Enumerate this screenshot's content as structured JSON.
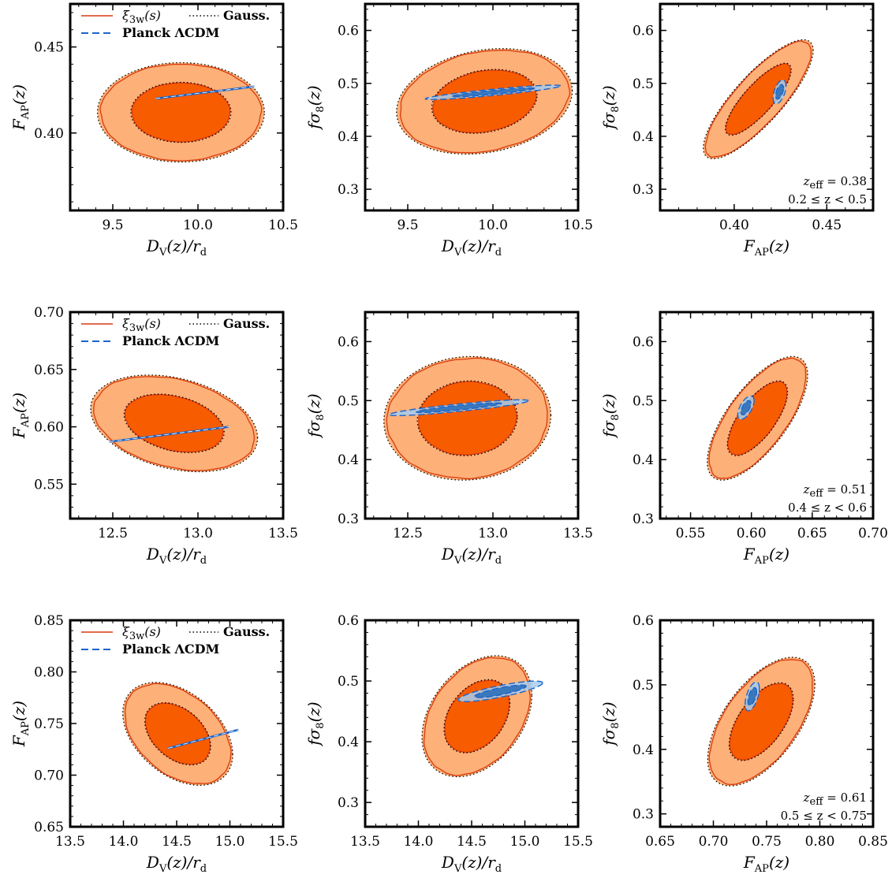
{
  "colors": {
    "orange_1sigma": "#f85c00",
    "orange_2sigma": "#fdb077",
    "orange_line": "#d83a10",
    "blue_1sigma": "#3a78be",
    "blue_2sigma": "#a6cdf0",
    "blue_line": "#1c64c8",
    "overlap": "#b5b8be",
    "gauss_line": "#000000"
  },
  "legend": {
    "xi": "ξ3w(s)",
    "gauss": "Gauss.",
    "planck": "Planck ΛCDM"
  },
  "chart_data": [
    {
      "id": "r1c1",
      "type": "contour",
      "xlabel": "DV(z)/rd",
      "ylabel": "FAP(z)",
      "xlim": [
        9.25,
        10.5
      ],
      "ylim": [
        0.355,
        0.475
      ],
      "xticks": [
        9.5,
        10.0,
        10.5
      ],
      "xtick_labels": [
        "9.5",
        "10.0",
        "10.5"
      ],
      "yticks": [
        0.4,
        0.45
      ],
      "ytick_labels": [
        "0.40",
        "0.45"
      ],
      "legend": true,
      "annotation": null,
      "orange": {
        "cx": 9.9,
        "cy": 0.412,
        "sx": 0.19,
        "sy": 0.0113,
        "rho": 0.0
      },
      "planck": {
        "x1": 9.75,
        "y1": 0.42,
        "x2": 10.33,
        "y2": 0.427,
        "line": true
      }
    },
    {
      "id": "r1c2",
      "type": "contour",
      "xlabel": "DV(z)/rd",
      "ylabel": "fσ8(z)",
      "xlim": [
        9.25,
        10.5
      ],
      "ylim": [
        0.26,
        0.65
      ],
      "xticks": [
        9.5,
        10.0,
        10.5
      ],
      "xtick_labels": [
        "9.5",
        "10.0",
        "10.5"
      ],
      "yticks": [
        0.3,
        0.4,
        0.5,
        0.6
      ],
      "ytick_labels": [
        "0.3",
        "0.4",
        "0.5",
        "0.6"
      ],
      "legend": false,
      "annotation": null,
      "orange": {
        "cx": 9.95,
        "cy": 0.466,
        "sx": 0.2,
        "sy": 0.039,
        "rho": 0.2
      },
      "blue": {
        "cx": 10.0,
        "cy": 0.483,
        "sx": 0.16,
        "sy": 0.0055,
        "rho": 0.9
      }
    },
    {
      "id": "r1c3",
      "type": "contour",
      "xlabel": "FAP(z)",
      "ylabel": "fσ8(z)",
      "xlim": [
        0.36,
        0.475
      ],
      "ylim": [
        0.26,
        0.65
      ],
      "xticks": [
        0.4,
        0.45
      ],
      "xtick_labels": [
        "0.40",
        "0.45"
      ],
      "yticks": [
        0.3,
        0.4,
        0.5,
        0.6
      ],
      "ytick_labels": [
        "0.3",
        "0.4",
        "0.5",
        "0.6"
      ],
      "legend": false,
      "annotation": {
        "zeff": "zeff = 0.38",
        "range": "0.2 ≤ z < 0.5"
      },
      "orange": {
        "cx": 0.413,
        "cy": 0.47,
        "sx": 0.0115,
        "sy": 0.044,
        "rho": 0.82
      },
      "blue": {
        "cx": 0.4245,
        "cy": 0.484,
        "sx": 0.0014,
        "sy": 0.009,
        "rho": 0.5
      }
    },
    {
      "id": "r2c1",
      "type": "contour",
      "xlabel": "DV(z)/rd",
      "ylabel": "FAP(z)",
      "xlim": [
        12.25,
        13.5
      ],
      "ylim": [
        0.52,
        0.7
      ],
      "xticks": [
        12.5,
        13.0,
        13.5
      ],
      "xtick_labels": [
        "12.5",
        "13.0",
        "13.5"
      ],
      "yticks": [
        0.55,
        0.6,
        0.65,
        0.7
      ],
      "ytick_labels": [
        "0.55",
        "0.60",
        "0.65",
        "0.70"
      ],
      "legend": true,
      "annotation": null,
      "orange": {
        "cx": 12.86,
        "cy": 0.603,
        "sx": 0.19,
        "sy": 0.0165,
        "rho": -0.3
      },
      "planck": {
        "x1": 12.48,
        "y1": 0.587,
        "x2": 13.18,
        "y2": 0.6,
        "line": true
      }
    },
    {
      "id": "r2c2",
      "type": "contour",
      "xlabel": "DV(z)/rd",
      "ylabel": "fσ8(z)",
      "xlim": [
        12.25,
        13.5
      ],
      "ylim": [
        0.3,
        0.65
      ],
      "xticks": [
        12.5,
        13.0,
        13.5
      ],
      "xtick_labels": [
        "12.5",
        "13.0",
        "13.5"
      ],
      "yticks": [
        0.3,
        0.4,
        0.5,
        0.6
      ],
      "ytick_labels": [
        "0.3",
        "0.4",
        "0.5",
        "0.6"
      ],
      "legend": false,
      "annotation": null,
      "orange": {
        "cx": 12.85,
        "cy": 0.47,
        "sx": 0.19,
        "sy": 0.041,
        "rho": 0.05
      },
      "blue": {
        "cx": 12.8,
        "cy": 0.488,
        "sx": 0.165,
        "sy": 0.0054,
        "rho": 0.88
      }
    },
    {
      "id": "r2c3",
      "type": "contour",
      "xlabel": "FAP(z)",
      "ylabel": "fσ8(z)",
      "xlim": [
        0.525,
        0.7
      ],
      "ylim": [
        0.3,
        0.65
      ],
      "xticks": [
        0.55,
        0.6,
        0.65,
        0.7
      ],
      "xtick_labels": [
        "0.55",
        "0.60",
        "0.65",
        "0.70"
      ],
      "yticks": [
        0.3,
        0.4,
        0.5,
        0.6
      ],
      "ytick_labels": [
        "0.3",
        "0.4",
        "0.5",
        "0.6"
      ],
      "legend": false,
      "annotation": {
        "zeff": "zeff = 0.51",
        "range": "0.4 ≤ z < 0.6"
      },
      "orange": {
        "cx": 0.605,
        "cy": 0.47,
        "sx": 0.016,
        "sy": 0.041,
        "rho": 0.7
      },
      "blue": {
        "cx": 0.5955,
        "cy": 0.488,
        "sx": 0.0027,
        "sy": 0.008,
        "rho": 0.6
      }
    },
    {
      "id": "r3c1",
      "type": "contour",
      "xlabel": "DV(z)/rd",
      "ylabel": "FAP(z)",
      "xlim": [
        13.5,
        15.5
      ],
      "ylim": [
        0.65,
        0.85
      ],
      "xticks": [
        13.5,
        14.0,
        14.5,
        15.0,
        15.5
      ],
      "xtick_labels": [
        "13.5",
        "14.0",
        "14.5",
        "15.0",
        "15.5"
      ],
      "yticks": [
        0.65,
        0.7,
        0.75,
        0.8,
        0.85
      ],
      "ytick_labels": [
        "0.65",
        "0.70",
        "0.75",
        "0.80",
        "0.85"
      ],
      "legend": true,
      "annotation": null,
      "orange": {
        "cx": 14.51,
        "cy": 0.74,
        "sx": 0.2,
        "sy": 0.0195,
        "rho": -0.4
      },
      "planck": {
        "x1": 14.42,
        "y1": 0.726,
        "x2": 15.08,
        "y2": 0.744,
        "line": true
      }
    },
    {
      "id": "r3c2",
      "type": "contour",
      "xlabel": "DV(z)/rd",
      "ylabel": "fσ8(z)",
      "xlim": [
        13.5,
        15.5
      ],
      "ylim": [
        0.26,
        0.6
      ],
      "xticks": [
        13.5,
        14.0,
        14.5,
        15.0,
        15.5
      ],
      "xtick_labels": [
        "13.5",
        "14.0",
        "14.5",
        "15.0",
        "15.5"
      ],
      "yticks": [
        0.3,
        0.4,
        0.5,
        0.6
      ],
      "ytick_labels": [
        "0.3",
        "0.4",
        "0.5",
        "0.6"
      ],
      "legend": false,
      "annotation": null,
      "orange": {
        "cx": 14.55,
        "cy": 0.442,
        "sx": 0.2,
        "sy": 0.039,
        "rho": 0.35
      },
      "blue": {
        "cx": 14.77,
        "cy": 0.483,
        "sx": 0.16,
        "sy": 0.0068,
        "rho": 0.82
      }
    },
    {
      "id": "r3c3",
      "type": "contour",
      "xlabel": "FAP(z)",
      "ylabel": "fσ8(z)",
      "xlim": [
        0.65,
        0.85
      ],
      "ylim": [
        0.28,
        0.6
      ],
      "xticks": [
        0.65,
        0.7,
        0.75,
        0.8,
        0.85
      ],
      "xtick_labels": [
        "0.65",
        "0.70",
        "0.75",
        "0.80",
        "0.85"
      ],
      "yticks": [
        0.3,
        0.4,
        0.5,
        0.6
      ],
      "ytick_labels": [
        "0.3",
        "0.4",
        "0.5",
        "0.6"
      ],
      "legend": false,
      "annotation": {
        "zeff": "zeff = 0.61",
        "range": "0.5 ≤ z < 0.75"
      },
      "orange": {
        "cx": 0.745,
        "cy": 0.443,
        "sx": 0.0195,
        "sy": 0.039,
        "rho": 0.58
      },
      "blue": {
        "cx": 0.7365,
        "cy": 0.482,
        "sx": 0.0027,
        "sy": 0.009,
        "rho": 0.55
      }
    }
  ]
}
